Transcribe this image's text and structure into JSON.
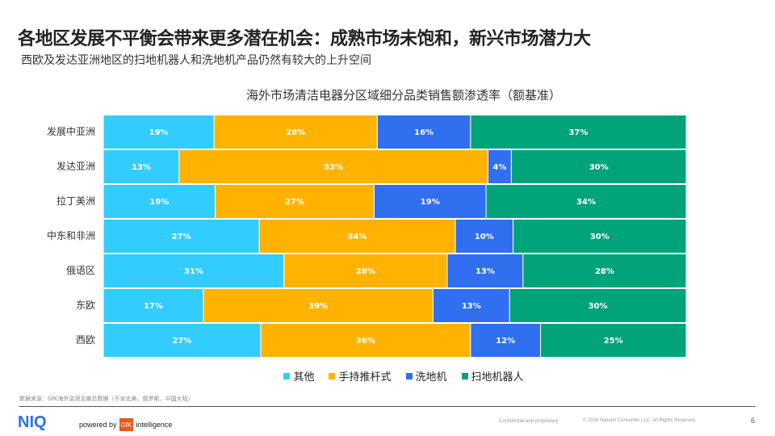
{
  "header": {
    "title": "各地区发展不平衡会带来更多潜在机会：成熟市场未饱和，新兴市场潜力大",
    "subtitle": "西欧及发达亚洲地区的扫地机器人和洗地机产品仍然有较大的上升空间"
  },
  "chart_data": {
    "type": "bar",
    "orientation": "horizontal-stacked-100",
    "title": "海外市场清洁电器分区域细分品类销售额渗透率（额基准）",
    "categories": [
      "发展中亚洲",
      "发达亚洲",
      "拉丁美洲",
      "中东和非洲",
      "俄语区",
      "东欧",
      "西欧"
    ],
    "series": [
      {
        "name": "其他",
        "color": "#33CCFF",
        "values": [
          19,
          13,
          19,
          27,
          31,
          17,
          27
        ]
      },
      {
        "name": "手持推杆式",
        "color": "#FFB300",
        "values": [
          28,
          53,
          27,
          34,
          28,
          39,
          36
        ]
      },
      {
        "name": "洗地机",
        "color": "#2F6FF0",
        "values": [
          16,
          4,
          19,
          10,
          13,
          13,
          12
        ]
      },
      {
        "name": "扫地机器人",
        "color": "#00A37A",
        "values": [
          37,
          30,
          34,
          30,
          28,
          30,
          25
        ]
      }
    ],
    "legend": "bottom",
    "value_format": "%"
  },
  "footer": {
    "source": "数据来源：GfK海外监测及推总数据（不含北美、俄罗斯、中国大陆）",
    "logo": "NIQ",
    "powered_by": "powered by",
    "gfk": "GfK",
    "intelligence": "intelligence",
    "confidential": "Confidential and proprietary",
    "copyright": "© 2026 Nielsen Consumer LLC. All Rights Reserved.",
    "page": "6"
  }
}
